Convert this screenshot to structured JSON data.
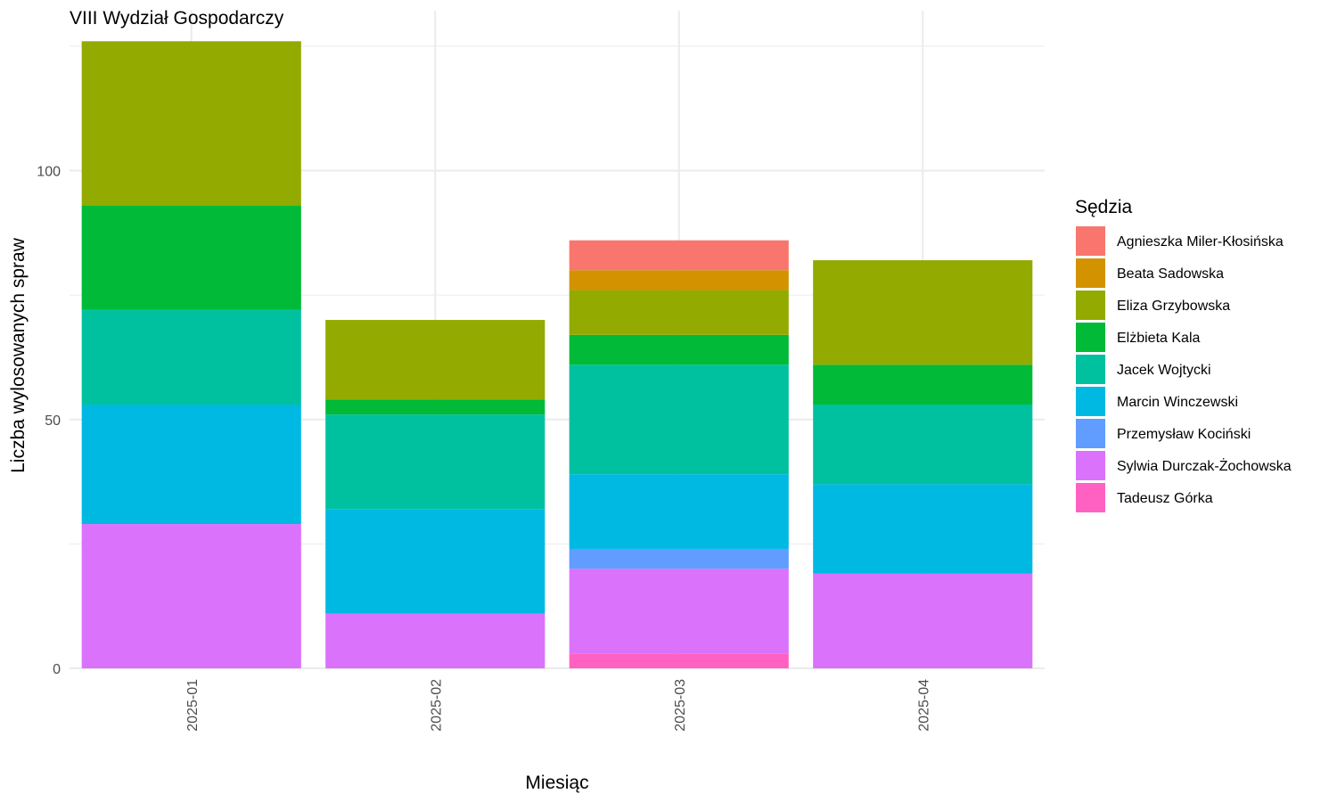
{
  "chart_data": {
    "type": "bar",
    "stacked": true,
    "title": "VIII Wydział Gospodarczy",
    "xlabel": "Miesiąc",
    "ylabel": "Liczba wylosowanych spraw",
    "ylim": [
      0,
      127
    ],
    "yticks": [
      "0",
      "50",
      "100"
    ],
    "grid": true,
    "legend_position": "right",
    "legend_title": "Sędzia",
    "categories": [
      "2025-01",
      "2025-02",
      "2025-03",
      "2025-04"
    ],
    "series": [
      {
        "name": "Agnieszka Miler-Kłosińska",
        "color": "#F8766D",
        "values": [
          0,
          0,
          6,
          0
        ]
      },
      {
        "name": "Beata Sadowska",
        "color": "#D39200",
        "values": [
          0,
          0,
          4,
          0
        ]
      },
      {
        "name": "Eliza Grzybowska",
        "color": "#93AA00",
        "values": [
          33,
          16,
          9,
          21
        ]
      },
      {
        "name": "Elżbieta Kala",
        "color": "#00BA38",
        "values": [
          21,
          3,
          6,
          8
        ]
      },
      {
        "name": "Jacek Wojtycki",
        "color": "#00C19F",
        "values": [
          19,
          19,
          22,
          16
        ]
      },
      {
        "name": "Marcin Winczewski",
        "color": "#00B9E3",
        "values": [
          24,
          21,
          15,
          18
        ]
      },
      {
        "name": "Przemysław Kociński",
        "color": "#619CFF",
        "values": [
          0,
          0,
          4,
          0
        ]
      },
      {
        "name": "Sylwia Durczak-Żochowska",
        "color": "#DB72FB",
        "values": [
          29,
          11,
          17,
          19
        ]
      },
      {
        "name": "Tadeusz Górka",
        "color": "#FF61C3",
        "values": [
          0,
          0,
          3,
          0
        ]
      }
    ]
  }
}
